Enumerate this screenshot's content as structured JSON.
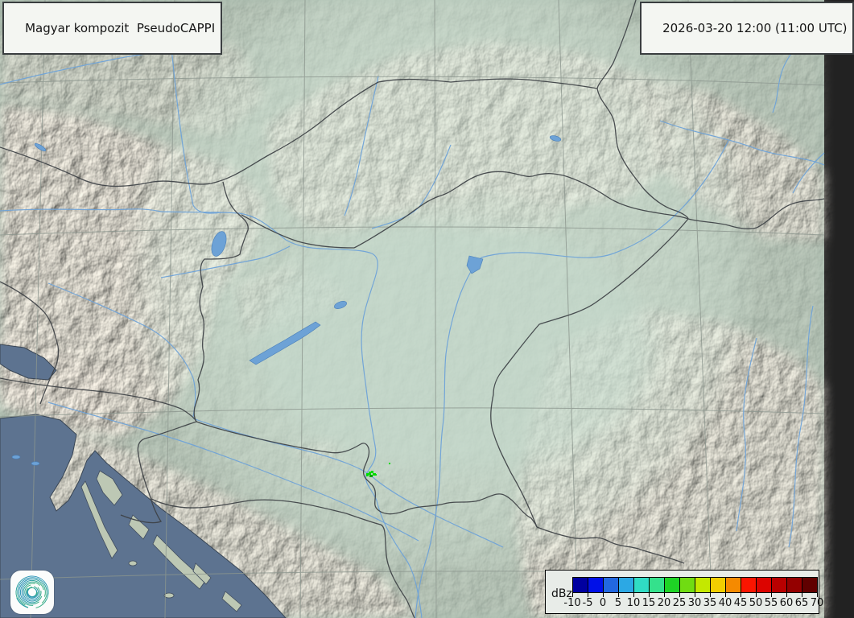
{
  "product": {
    "title": "Magyar kompozit  PseudoCAPPI"
  },
  "timestamp": {
    "label": "2026-03-20 12:00 (11:00 UTC)"
  },
  "legend": {
    "unit_label": "dBz",
    "tick_values": [
      "-10",
      "-5",
      "0",
      "5",
      "10",
      "15",
      "20",
      "25",
      "30",
      "35",
      "40",
      "45",
      "50",
      "55",
      "60",
      "65",
      "70"
    ],
    "colors": [
      "#0000A0",
      "#0010E8",
      "#2268E0",
      "#2CA8E4",
      "#30DCC4",
      "#34E18C",
      "#1ED425",
      "#70DC12",
      "#C4E800",
      "#F2CE00",
      "#F58A00",
      "#FB1500",
      "#DC0400",
      "#B80000",
      "#940000",
      "#600000"
    ]
  },
  "radar": {
    "echo_color": "#00DC00",
    "echo_color_weak": "#00A400",
    "coverage_tint": "#D6E9DB"
  },
  "map_colors": {
    "land_base": "#A9BCAE",
    "sea": "#5D7390",
    "coast": "#3A4654",
    "border": "#3D4145",
    "river": "#6FA3D8",
    "lake": "#6DA2D6",
    "grid": "#8C968E"
  },
  "branding": {
    "logo_icon": "spiral-logo"
  }
}
